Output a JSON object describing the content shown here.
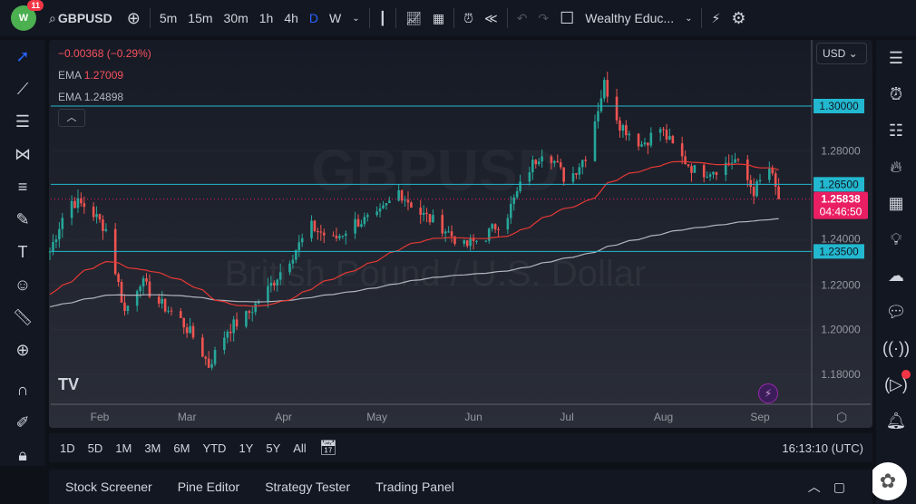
{
  "topbar": {
    "notif_count": "11",
    "symbol": "GBPUSD",
    "intervals": [
      "5m",
      "15m",
      "30m",
      "1h",
      "4h",
      "D",
      "W"
    ],
    "active_interval": "D",
    "layout_name": "Wealthy Educ..."
  },
  "legend": {
    "change": "−0.00368 (−0.29%)",
    "ema1_label": "EMA",
    "ema1_value": "1.27009",
    "ema2_label": "EMA",
    "ema2_value": "1.24898"
  },
  "currency": "USD",
  "watermark": {
    "symbol": "GBPUSD",
    "name": "British Pound / U.S. Dollar"
  },
  "colors": {
    "up": "#26a69a",
    "down": "#ef5350",
    "ema_fast": "#e53935",
    "ema_slow": "#b2b5be",
    "hline": "#22b8cf",
    "last": "#e91e63"
  },
  "chart_data": {
    "type": "candlestick",
    "yticks": [
      "1.30000",
      "1.28000",
      "1.26500",
      "1.24000",
      "1.23500",
      "1.22000",
      "1.20000",
      "1.18000"
    ],
    "grid_ticks": [
      1.28,
      1.24,
      1.22,
      1.2,
      1.18
    ],
    "ylim": [
      1.173,
      1.314
    ],
    "xticks": [
      {
        "label": "Feb",
        "date": "02-01"
      },
      {
        "label": "Mar",
        "date": "03-01"
      },
      {
        "label": "Apr",
        "date": "04-01"
      },
      {
        "label": "May",
        "date": "05-01"
      },
      {
        "label": "Jun",
        "date": "06-01"
      },
      {
        "label": "Jul",
        "date": "07-01"
      },
      {
        "label": "Aug",
        "date": "08-01"
      },
      {
        "label": "Sep",
        "date": "09-01"
      }
    ],
    "hlines": [
      {
        "value": 1.3,
        "label": "1.30000"
      },
      {
        "value": 1.265,
        "label": "1.26500"
      },
      {
        "value": 1.235,
        "label": "1.23500"
      }
    ],
    "last_price": {
      "value": 1.25838,
      "label": "1.25838",
      "countdown": "04:46:50"
    },
    "closes": [
      [
        "01-16",
        1.235
      ],
      [
        "01-22",
        1.258
      ],
      [
        "01-28",
        1.255
      ],
      [
        "02-03",
        1.245
      ],
      [
        "02-09",
        1.208
      ],
      [
        "02-14",
        1.222
      ],
      [
        "02-20",
        1.212
      ],
      [
        "02-26",
        1.206
      ],
      [
        "03-04",
        1.195
      ],
      [
        "03-08",
        1.184
      ],
      [
        "03-14",
        1.2
      ],
      [
        "03-20",
        1.206
      ],
      [
        "03-27",
        1.218
      ],
      [
        "04-03",
        1.232
      ],
      [
        "04-10",
        1.246
      ],
      [
        "04-17",
        1.24
      ],
      [
        "04-24",
        1.248
      ],
      [
        "05-01",
        1.25
      ],
      [
        "05-08",
        1.262
      ],
      [
        "05-15",
        1.252
      ],
      [
        "05-22",
        1.246
      ],
      [
        "05-29",
        1.237
      ],
      [
        "06-05",
        1.242
      ],
      [
        "06-12",
        1.252
      ],
      [
        "06-18",
        1.27
      ],
      [
        "06-24",
        1.282
      ],
      [
        "07-01",
        1.266
      ],
      [
        "07-07",
        1.278
      ],
      [
        "07-13",
        1.31
      ],
      [
        "07-18",
        1.292
      ],
      [
        "07-25",
        1.283
      ],
      [
        "07-31",
        1.29
      ],
      [
        "08-06",
        1.278
      ],
      [
        "08-12",
        1.27
      ],
      [
        "08-18",
        1.272
      ],
      [
        "08-24",
        1.276
      ],
      [
        "08-30",
        1.262
      ],
      [
        "09-04",
        1.272
      ],
      [
        "09-07",
        1.25838
      ]
    ]
  },
  "timeframes": [
    "1D",
    "5D",
    "1M",
    "3M",
    "6M",
    "YTD",
    "1Y",
    "5Y",
    "All"
  ],
  "clock": "16:13:10 (UTC)",
  "bottom_tabs": [
    "Stock Screener",
    "Pine Editor",
    "Strategy Tester",
    "Trading Panel"
  ]
}
